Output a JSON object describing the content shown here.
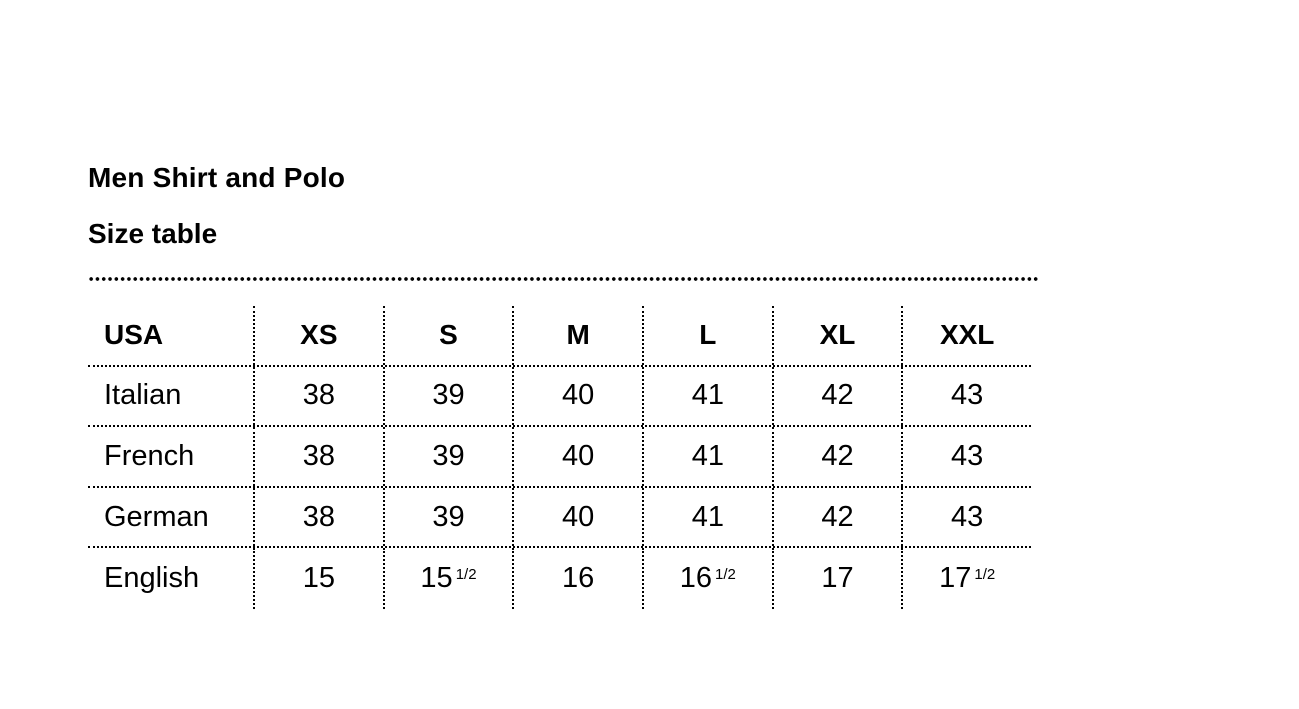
{
  "title": "Men Shirt and Polo",
  "subtitle": "Size table",
  "table": {
    "header": [
      "USA",
      "XS",
      "S",
      "M",
      "L",
      "XL",
      "XXL"
    ],
    "rows": [
      {
        "label": "Italian",
        "values": [
          {
            "v": "38"
          },
          {
            "v": "39"
          },
          {
            "v": "40"
          },
          {
            "v": "41"
          },
          {
            "v": "42"
          },
          {
            "v": "43"
          }
        ]
      },
      {
        "label": "French",
        "values": [
          {
            "v": "38"
          },
          {
            "v": "39"
          },
          {
            "v": "40"
          },
          {
            "v": "41"
          },
          {
            "v": "42"
          },
          {
            "v": "43"
          }
        ]
      },
      {
        "label": "German",
        "values": [
          {
            "v": "38"
          },
          {
            "v": "39"
          },
          {
            "v": "40"
          },
          {
            "v": "41"
          },
          {
            "v": "42"
          },
          {
            "v": "43"
          }
        ]
      },
      {
        "label": "English",
        "values": [
          {
            "v": "15"
          },
          {
            "v": "15",
            "f": "1/2"
          },
          {
            "v": "16"
          },
          {
            "v": "16",
            "f": "1/2"
          },
          {
            "v": "17"
          },
          {
            "v": "17",
            "f": "1/2"
          }
        ]
      }
    ]
  }
}
